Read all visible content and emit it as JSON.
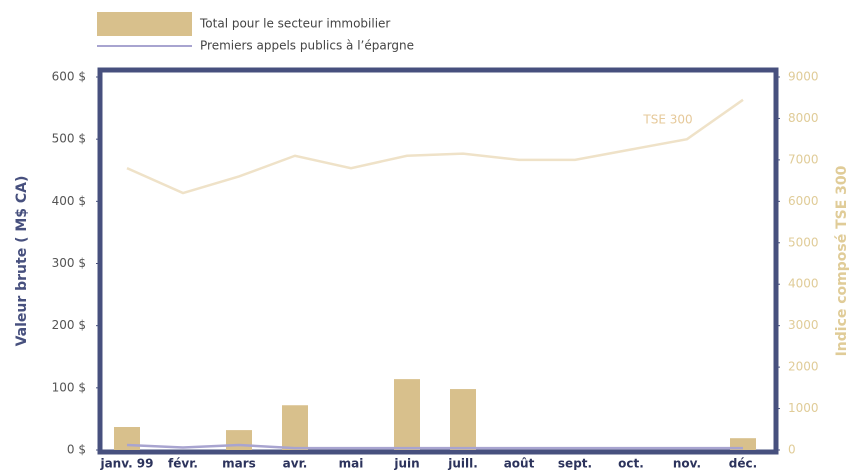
{
  "chart_data": {
    "type": "bar",
    "categories": [
      "janv. 99",
      "févr.",
      "mars",
      "avr.",
      "mai",
      "juin",
      "juill.",
      "août",
      "sept.",
      "oct.",
      "nov.",
      "déc."
    ],
    "series": [
      {
        "name": "Total pour le secteur immobilier",
        "type": "bar",
        "color": "#d8c08c",
        "values": [
          37,
          0,
          32,
          72,
          0,
          114,
          98,
          0,
          0,
          0,
          0,
          19
        ]
      },
      {
        "name": "Premiers appels publics à l’épargne",
        "type": "line",
        "color": "#a8a4d0",
        "values": [
          8,
          4,
          8,
          3,
          3,
          3,
          3,
          3,
          3,
          3,
          3,
          3
        ]
      },
      {
        "type": "line",
        "axis": "y2",
        "color": "#efe2c8",
        "values": [
          6800,
          6200,
          6600,
          7100,
          6800,
          7100,
          7150,
          7000,
          7000,
          7250,
          7500,
          8450
        ]
      }
    ],
    "annotations": [
      "TSE 300"
    ],
    "ylabel": "Valeur brute ( M$ CA)",
    "y2label": "Indice composé TSE 300",
    "ylim": [
      0,
      600
    ],
    "yticks": [
      {
        "value": 0,
        "label": "0 $"
      },
      {
        "value": 100,
        "label": "100 $"
      },
      {
        "value": 200,
        "label": "200 $"
      },
      {
        "value": 300,
        "label": "300 $"
      },
      {
        "value": 400,
        "label": "400 $"
      },
      {
        "value": 500,
        "label": "500 $"
      },
      {
        "value": 600,
        "label": "600 $"
      }
    ],
    "y2lim": [
      0,
      9000
    ],
    "y2ticks": [
      0,
      1000,
      2000,
      3000,
      4000,
      5000,
      6000,
      7000,
      8000,
      9000
    ],
    "grid": false
  }
}
